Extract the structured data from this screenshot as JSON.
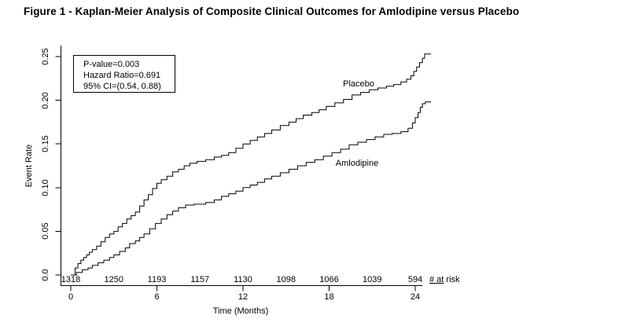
{
  "title": "Figure 1 - Kaplan-Meier Analysis of Composite Clinical Outcomes for Amlodipine versus Placebo",
  "stats_box": {
    "p_value": "P-value=0.003",
    "hazard_ratio": "Hazard Ratio=0.691",
    "ci": "95% CI=(0.54, 0.88)"
  },
  "colors": {
    "curve": "#000000",
    "axis": "#000000",
    "text": "#000000",
    "background": "#ffffff"
  },
  "chart_data": {
    "type": "line",
    "subtype": "kaplan-meier-step",
    "title": "",
    "xlabel": "Time (Months)",
    "ylabel": "Event Rate",
    "xlim": [
      0,
      25.5
    ],
    "ylim": [
      0,
      0.26
    ],
    "x_ticks": [
      0,
      6,
      12,
      18,
      24
    ],
    "y_ticks": [
      {
        "value": 0.0,
        "label": "0.0"
      },
      {
        "value": 0.05,
        "label": "0.05"
      },
      {
        "value": 0.1,
        "label": "0.10"
      },
      {
        "value": 0.15,
        "label": "0.15"
      },
      {
        "value": 0.2,
        "label": "0.20"
      },
      {
        "value": 0.25,
        "label": "0.25"
      }
    ],
    "grid": false,
    "legend_position": "inline-curve-labels",
    "series": [
      {
        "name": "Placebo",
        "points": [
          [
            0,
            0
          ],
          [
            0.3,
            0.008
          ],
          [
            0.5,
            0.013
          ],
          [
            0.7,
            0.017
          ],
          [
            0.9,
            0.02
          ],
          [
            1.1,
            0.023
          ],
          [
            1.3,
            0.026
          ],
          [
            1.5,
            0.029
          ],
          [
            1.8,
            0.033
          ],
          [
            2.1,
            0.038
          ],
          [
            2.4,
            0.043
          ],
          [
            2.7,
            0.047
          ],
          [
            3.0,
            0.05
          ],
          [
            3.3,
            0.055
          ],
          [
            3.6,
            0.059
          ],
          [
            3.9,
            0.064
          ],
          [
            4.2,
            0.068
          ],
          [
            4.5,
            0.072
          ],
          [
            4.8,
            0.079
          ],
          [
            5.1,
            0.086
          ],
          [
            5.4,
            0.092
          ],
          [
            5.7,
            0.099
          ],
          [
            6.0,
            0.105
          ],
          [
            6.3,
            0.109
          ],
          [
            6.7,
            0.113
          ],
          [
            7.1,
            0.118
          ],
          [
            7.5,
            0.121
          ],
          [
            7.9,
            0.125
          ],
          [
            8.3,
            0.128
          ],
          [
            8.8,
            0.13
          ],
          [
            9.4,
            0.132
          ],
          [
            10.0,
            0.135
          ],
          [
            10.5,
            0.137
          ],
          [
            11.0,
            0.14
          ],
          [
            11.5,
            0.145
          ],
          [
            12.0,
            0.15
          ],
          [
            12.5,
            0.154
          ],
          [
            13.0,
            0.158
          ],
          [
            13.5,
            0.162
          ],
          [
            14.0,
            0.166
          ],
          [
            14.6,
            0.171
          ],
          [
            15.2,
            0.175
          ],
          [
            15.7,
            0.179
          ],
          [
            16.2,
            0.183
          ],
          [
            16.8,
            0.186
          ],
          [
            17.3,
            0.189
          ],
          [
            17.8,
            0.193
          ],
          [
            18.4,
            0.197
          ],
          [
            19.0,
            0.201
          ],
          [
            19.6,
            0.206
          ],
          [
            20.2,
            0.209
          ],
          [
            20.8,
            0.212
          ],
          [
            21.4,
            0.214
          ],
          [
            22.0,
            0.216
          ],
          [
            22.5,
            0.218
          ],
          [
            23.0,
            0.221
          ],
          [
            23.4,
            0.224
          ],
          [
            23.7,
            0.228
          ],
          [
            23.9,
            0.233
          ],
          [
            24.1,
            0.238
          ],
          [
            24.3,
            0.243
          ],
          [
            24.5,
            0.248
          ],
          [
            24.65,
            0.253
          ],
          [
            25.1,
            0.253
          ]
        ]
      },
      {
        "name": "Amlodipine",
        "points": [
          [
            0,
            0
          ],
          [
            0.4,
            0.003
          ],
          [
            0.8,
            0.006
          ],
          [
            1.2,
            0.008
          ],
          [
            1.5,
            0.011
          ],
          [
            1.9,
            0.014
          ],
          [
            2.3,
            0.017
          ],
          [
            2.7,
            0.02
          ],
          [
            3.0,
            0.023
          ],
          [
            3.4,
            0.027
          ],
          [
            3.8,
            0.031
          ],
          [
            4.1,
            0.036
          ],
          [
            4.5,
            0.039
          ],
          [
            4.8,
            0.043
          ],
          [
            5.1,
            0.047
          ],
          [
            5.5,
            0.053
          ],
          [
            5.9,
            0.059
          ],
          [
            6.3,
            0.064
          ],
          [
            6.7,
            0.069
          ],
          [
            7.1,
            0.073
          ],
          [
            7.5,
            0.077
          ],
          [
            8.0,
            0.08
          ],
          [
            8.6,
            0.081
          ],
          [
            9.4,
            0.083
          ],
          [
            10.0,
            0.086
          ],
          [
            10.5,
            0.09
          ],
          [
            11.0,
            0.093
          ],
          [
            11.5,
            0.096
          ],
          [
            12.0,
            0.1
          ],
          [
            12.5,
            0.103
          ],
          [
            13.0,
            0.106
          ],
          [
            13.5,
            0.11
          ],
          [
            14.0,
            0.113
          ],
          [
            14.6,
            0.117
          ],
          [
            15.2,
            0.121
          ],
          [
            15.8,
            0.125
          ],
          [
            16.4,
            0.129
          ],
          [
            17.0,
            0.132
          ],
          [
            17.6,
            0.136
          ],
          [
            18.2,
            0.14
          ],
          [
            18.8,
            0.144
          ],
          [
            19.4,
            0.149
          ],
          [
            20.0,
            0.152
          ],
          [
            20.6,
            0.155
          ],
          [
            21.2,
            0.158
          ],
          [
            21.8,
            0.161
          ],
          [
            22.4,
            0.162
          ],
          [
            23.0,
            0.164
          ],
          [
            23.5,
            0.168
          ],
          [
            23.8,
            0.174
          ],
          [
            24.0,
            0.18
          ],
          [
            24.2,
            0.186
          ],
          [
            24.35,
            0.192
          ],
          [
            24.5,
            0.196
          ],
          [
            24.7,
            0.198
          ],
          [
            25.1,
            0.198
          ]
        ]
      }
    ],
    "at_risk": {
      "label_underlined": "# at",
      "label_rest": " risk",
      "months": [
        0,
        3,
        6,
        9,
        12,
        15,
        18,
        21,
        24
      ],
      "counts": [
        1318,
        1250,
        1193,
        1157,
        1130,
        1098,
        1066,
        1039,
        594
      ]
    }
  }
}
